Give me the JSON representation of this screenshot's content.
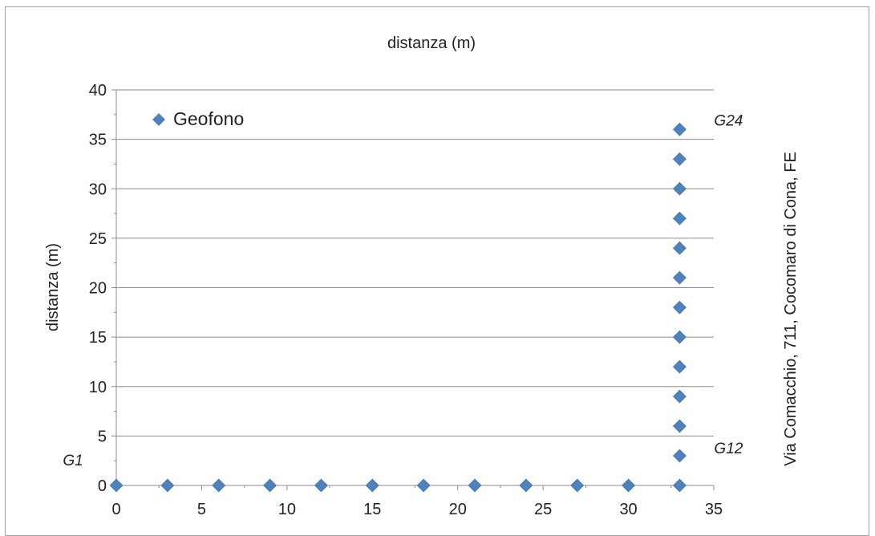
{
  "chart_data": {
    "type": "scatter",
    "title": "distanza (m)",
    "xlabel": "",
    "ylabel": "distanza (m)",
    "side_label": "Via Comacchio, 711, Cocomaro di Cona, FE",
    "xlim": [
      0,
      35
    ],
    "ylim": [
      0,
      40
    ],
    "x_ticks": [
      "0",
      "5",
      "10",
      "15",
      "20",
      "25",
      "30",
      "35"
    ],
    "y_ticks": [
      "0",
      "5",
      "10",
      "15",
      "20",
      "25",
      "30",
      "35",
      "40"
    ],
    "grid": "horizontal",
    "legend": {
      "placement": "top-left",
      "entries": [
        "Geofono"
      ]
    },
    "series": [
      {
        "name": "Geofono",
        "color": "#4F81BD",
        "marker": "diamond",
        "points": [
          [
            0,
            0
          ],
          [
            3,
            0
          ],
          [
            6,
            0
          ],
          [
            9,
            0
          ],
          [
            12,
            0
          ],
          [
            15,
            0
          ],
          [
            18,
            0
          ],
          [
            21,
            0
          ],
          [
            24,
            0
          ],
          [
            27,
            0
          ],
          [
            30,
            0
          ],
          [
            33,
            0
          ],
          [
            33,
            3
          ],
          [
            33,
            6
          ],
          [
            33,
            9
          ],
          [
            33,
            12
          ],
          [
            33,
            15
          ],
          [
            33,
            18
          ],
          [
            33,
            21
          ],
          [
            33,
            24
          ],
          [
            33,
            27
          ],
          [
            33,
            30
          ],
          [
            33,
            33
          ],
          [
            33,
            36
          ]
        ]
      }
    ],
    "annotations": [
      {
        "text": "G1",
        "x": 0,
        "y": 0
      },
      {
        "text": "G12",
        "x": 33,
        "y": 0
      },
      {
        "text": "G24",
        "x": 33,
        "y": 36
      }
    ]
  }
}
